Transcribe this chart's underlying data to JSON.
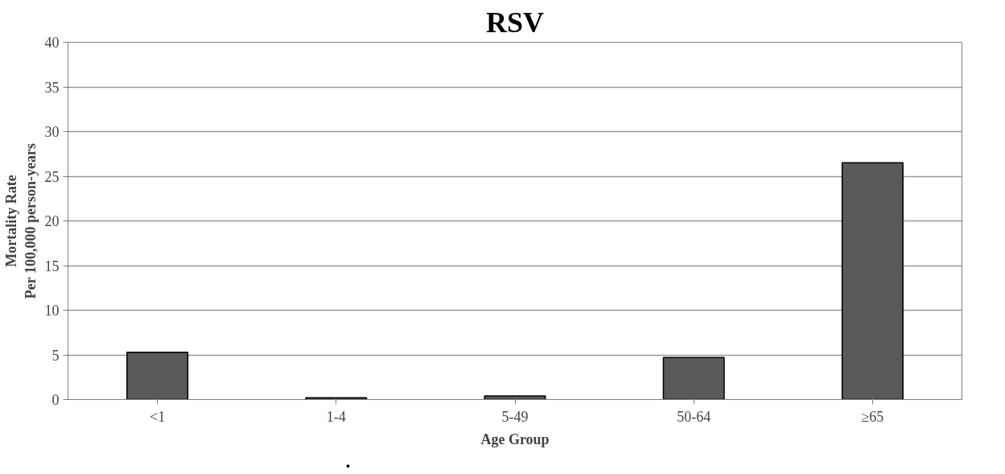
{
  "chart_data": {
    "type": "bar",
    "title": "RSV",
    "xlabel": "Age Group",
    "ylabel": "Mortality Rate\nPer 100,000 person-years",
    "categories": [
      "<1",
      "1-4",
      "5-49",
      "50-64",
      "≥65"
    ],
    "values": [
      5.3,
      0.2,
      0.4,
      4.7,
      26.5
    ],
    "color": "#595959",
    "ylim": [
      0,
      40
    ],
    "yticks": [
      0,
      5,
      10,
      15,
      20,
      25,
      30,
      35,
      40
    ],
    "grid": "y",
    "annotations": [
      "."
    ]
  }
}
